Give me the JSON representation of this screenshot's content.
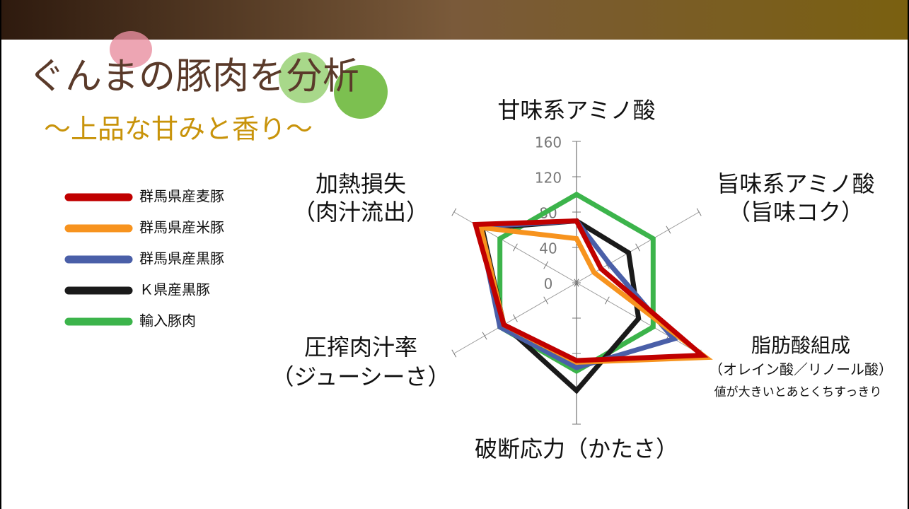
{
  "chart_data": {
    "type": "radar",
    "title": "ぐんまの豚肉を分析",
    "subtitle": "～上品な甘みと香り～",
    "categories": [
      "甘味系アミノ酸",
      "旨味系アミノ酸",
      "脂肪酸組成",
      "破断応力（かたさ）",
      "圧搾肉汁率",
      "加熱損失"
    ],
    "category_sublabels": [
      null,
      "（旨味コク）",
      "（オレイン酸／リノール酸）",
      null,
      "（ジューシーさ）",
      "（肉汁流出）"
    ],
    "annotation": "値が大きいとあとくちすっきり",
    "rlim": [
      0,
      160
    ],
    "rticks": [
      0,
      40,
      80,
      120,
      160
    ],
    "legend": "left",
    "series": [
      {
        "name": "群馬県産麦豚",
        "color": "#c00000",
        "values": [
          70,
          32,
          164,
          88,
          95,
          132
        ]
      },
      {
        "name": "群馬県産米豚",
        "color": "#f7931e",
        "values": [
          50,
          23,
          169,
          90,
          95,
          125
        ]
      },
      {
        "name": "群馬県産黒豚",
        "color": "#4a5fa8",
        "values": [
          70,
          43,
          127,
          96,
          100,
          127
        ]
      },
      {
        "name": "Ｋ県産黒豚",
        "color": "#1a1a1a",
        "values": [
          70,
          68,
          81,
          122,
          95,
          123
        ]
      },
      {
        "name": "輸入豚肉",
        "color": "#3cb44b",
        "values": [
          100,
          100,
          100,
          100,
          100,
          100
        ]
      }
    ]
  }
}
